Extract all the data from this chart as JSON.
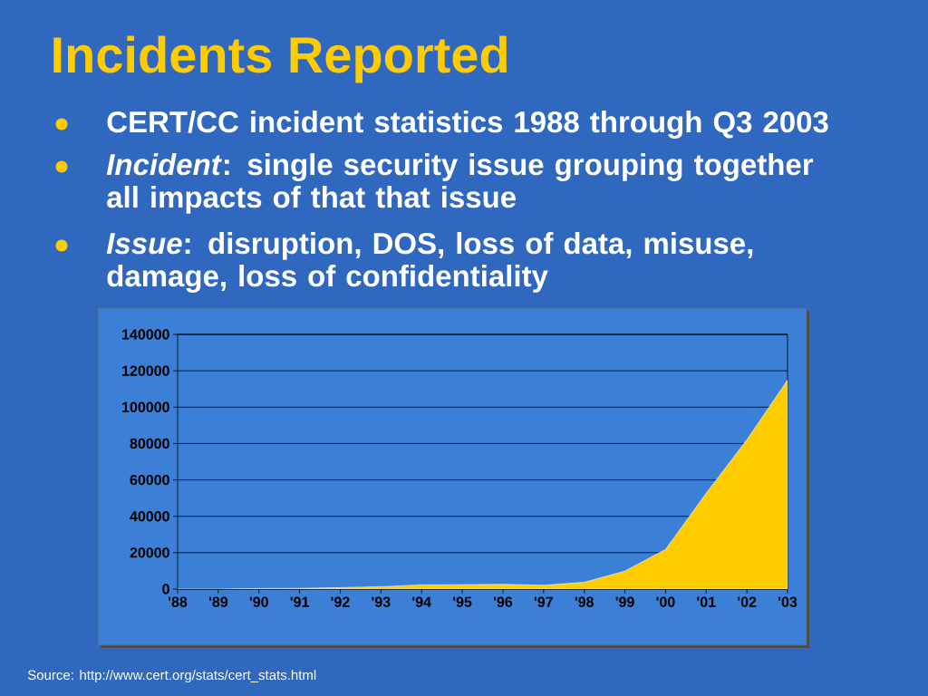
{
  "chart_data": {
    "type": "area",
    "title": "Incidents Reported",
    "annotations": [
      "CERT/CC incident statistics 1988 through Q3 2003",
      "*Incident*: single security issue grouping together all impacts of that that issue",
      "*Issue*: disruption, DOS, loss of data, misuse, damage, loss of confidentiality",
      "Source: http://www.cert.org/stats/cert_stats.html"
    ],
    "categories": [
      "'88",
      "'89",
      "'90",
      "'91",
      "'92",
      "'93",
      "'94",
      "'95",
      "'96",
      "'97",
      "'98",
      "'99",
      "'00",
      "'01",
      "'02",
      "'03"
    ],
    "series": [
      {
        "color": "#ffcc00",
        "values": [
          0,
          0,
          300,
          400,
          800,
          1300,
          2300,
          2400,
          2600,
          2100,
          3700,
          9900,
          21800,
          52700,
          82100,
          114900
        ]
      }
    ],
    "ylim": [
      0,
      140000
    ],
    "yticks": [
      0,
      20000,
      40000,
      60000,
      80000,
      100000,
      120000,
      140000
    ],
    "grid": "y"
  }
}
